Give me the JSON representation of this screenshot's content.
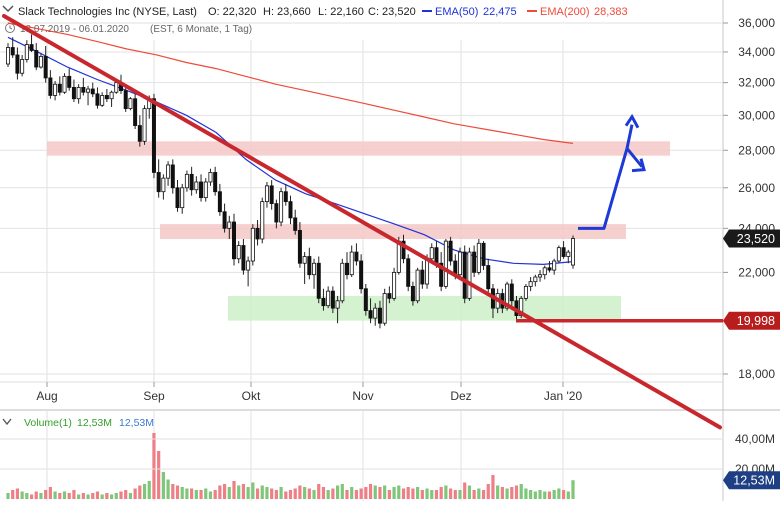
{
  "header": {
    "title": "Slack Technologies Inc (NYSE, Last)",
    "ohlc": [
      "O: 22,320",
      "H: 23,660",
      "L: 22,160",
      "C: 23,520"
    ],
    "ema50_label": "EMA(50)",
    "ema50_value": "22,475",
    "ema200_label": "EMA(200)",
    "ema200_value": "28,383",
    "range": "18.07.2019 - 06.01.2020",
    "settings": "(EST, 6 Monate, 1 Tag)",
    "clock_icon": "clock-icon"
  },
  "colors": {
    "up": "#33a02c",
    "down": "#e0181e",
    "ema50": "#2033d6",
    "ema200": "#ee4b3a",
    "trend": "#c8272e",
    "arrow": "#1c3ad6",
    "resistance_zone": "#f3c8c6",
    "support_zone": "#cdeec8",
    "grid": "#e2e2e2",
    "axis_text": "#333333",
    "last_badge": "#1a1a1a",
    "level_badge": "#b81d1e",
    "volume_badge": "#1e3f84"
  },
  "price_axis": {
    "ticks": [
      {
        "v": 36000,
        "label": "36,000"
      },
      {
        "v": 34000,
        "label": "34,000"
      },
      {
        "v": 32000,
        "label": "32,000"
      },
      {
        "v": 30000,
        "label": "30,000"
      },
      {
        "v": 28000,
        "label": "28,000"
      },
      {
        "v": 26000,
        "label": "26,000"
      },
      {
        "v": 24000,
        "label": "24,000"
      },
      {
        "v": 22000,
        "label": "22,000"
      },
      {
        "v": 18000,
        "label": "18,000"
      }
    ],
    "last_price": {
      "v": 23520,
      "label": "23,520"
    },
    "level_badge": {
      "v": 19998,
      "label": "19,998"
    }
  },
  "x_axis": {
    "labels": [
      "Aug",
      "Sep",
      "Okt",
      "Nov",
      "Dez",
      "Jan '20"
    ]
  },
  "volume_panel": {
    "title": "Volume(1)",
    "value1": "12,53M",
    "value2": "12,53M",
    "ticks": [
      {
        "v": 40,
        "label": "40,00M"
      },
      {
        "v": 20,
        "label": "20,00M"
      }
    ],
    "last_label": "12,53M"
  },
  "chart_data": {
    "type": "candlestick",
    "title": "Slack Technologies Inc (NYSE, Last)",
    "x_range": [
      "18.07.2019",
      "06.01.2020"
    ],
    "ylim": [
      17000,
      37000
    ],
    "scale": "log",
    "grid": true,
    "annotations": {
      "resistance_zone_high": [
        27700,
        28500
      ],
      "resistance_zone_low": [
        23500,
        24200
      ],
      "support_zone": [
        20000,
        21000
      ],
      "support_level": 19998,
      "trendline": {
        "from": [
          "18.07.2019",
          36000
        ],
        "to": [
          "06.01.2020",
          19998
        ]
      },
      "projection_arrow": {
        "from": 24000,
        "peak": 28100,
        "targets": [
          29800,
          27000
        ]
      }
    },
    "ema": [
      {
        "name": "EMA(50)",
        "last": 22475,
        "values": [
          35000,
          34000,
          33000,
          32200,
          31500,
          30800,
          30000,
          29000,
          27500,
          26400,
          25700,
          25200,
          24700,
          24200,
          23700,
          23000,
          22600,
          22400,
          22350,
          22475
        ]
      },
      {
        "name": "EMA(200)",
        "last": 28383,
        "values": [
          36000,
          35600,
          35200,
          34700,
          34200,
          33800,
          33300,
          32900,
          32400,
          31900,
          31500,
          31100,
          30700,
          30300,
          29900,
          29500,
          29200,
          28900,
          28600,
          28383
        ]
      }
    ],
    "candles": [
      [
        33200,
        34600,
        33000,
        34300,
        4
      ],
      [
        34300,
        35000,
        33600,
        33800,
        6
      ],
      [
        33800,
        34300,
        32200,
        32600,
        7
      ],
      [
        32600,
        33800,
        32400,
        33500,
        5
      ],
      [
        33500,
        34800,
        33300,
        34500,
        4
      ],
      [
        34500,
        35200,
        34000,
        34100,
        3
      ],
      [
        34100,
        34600,
        32800,
        33000,
        5
      ],
      [
        33000,
        33900,
        32900,
        33700,
        4
      ],
      [
        33700,
        34400,
        32000,
        32300,
        6
      ],
      [
        32300,
        32800,
        31000,
        31200,
        8
      ],
      [
        31200,
        32100,
        30900,
        31900,
        5
      ],
      [
        31900,
        32400,
        31200,
        31400,
        4
      ],
      [
        31400,
        32600,
        31300,
        32400,
        5
      ],
      [
        32400,
        32900,
        31500,
        31700,
        4
      ],
      [
        31700,
        32200,
        30800,
        31000,
        6
      ],
      [
        31000,
        31900,
        30700,
        31700,
        3
      ],
      [
        31700,
        32300,
        31200,
        31400,
        4
      ],
      [
        31400,
        31800,
        30600,
        31600,
        3
      ],
      [
        31600,
        32000,
        31100,
        31300,
        4
      ],
      [
        31300,
        31700,
        30400,
        30600,
        5
      ],
      [
        30600,
        31400,
        30500,
        31200,
        3
      ],
      [
        31200,
        31600,
        30800,
        31000,
        4
      ],
      [
        31000,
        31500,
        30500,
        31400,
        3
      ],
      [
        31400,
        32200,
        31300,
        32000,
        4
      ],
      [
        32000,
        32500,
        31300,
        31500,
        5
      ],
      [
        31500,
        31900,
        30200,
        30400,
        6
      ],
      [
        30400,
        31100,
        30300,
        31000,
        4
      ],
      [
        31000,
        31300,
        29200,
        29400,
        7
      ],
      [
        29400,
        30000,
        28200,
        28500,
        9
      ],
      [
        28500,
        30600,
        28300,
        30400,
        10
      ],
      [
        30400,
        31200,
        29800,
        31000,
        12
      ],
      [
        31000,
        31300,
        26500,
        26800,
        44
      ],
      [
        26800,
        27500,
        25500,
        25800,
        32
      ],
      [
        25800,
        26700,
        25400,
        26500,
        18
      ],
      [
        26500,
        27400,
        26100,
        27200,
        13
      ],
      [
        27200,
        27500,
        25700,
        26000,
        10
      ],
      [
        26000,
        26400,
        24800,
        25000,
        9
      ],
      [
        25000,
        26200,
        24700,
        26000,
        8
      ],
      [
        26000,
        26900,
        25800,
        26700,
        7
      ],
      [
        26700,
        27100,
        25600,
        25900,
        7
      ],
      [
        25900,
        26600,
        25700,
        26300,
        6
      ],
      [
        26300,
        26700,
        25300,
        25500,
        6
      ],
      [
        25500,
        26500,
        25300,
        26300,
        7
      ],
      [
        26300,
        27000,
        26100,
        26800,
        5
      ],
      [
        26800,
        27100,
        25600,
        25800,
        6
      ],
      [
        25800,
        26200,
        24600,
        24800,
        9
      ],
      [
        24800,
        25200,
        23800,
        24000,
        10
      ],
      [
        24000,
        24600,
        23500,
        24300,
        8
      ],
      [
        24300,
        24700,
        22300,
        22600,
        12
      ],
      [
        22600,
        23400,
        22400,
        23200,
        9
      ],
      [
        23200,
        23500,
        21900,
        22100,
        10
      ],
      [
        22100,
        22700,
        21400,
        22500,
        8
      ],
      [
        22500,
        24200,
        22300,
        24000,
        11
      ],
      [
        24000,
        24400,
        23200,
        23500,
        7
      ],
      [
        23500,
        25500,
        23300,
        25300,
        9
      ],
      [
        25300,
        26300,
        25000,
        26100,
        8
      ],
      [
        26100,
        26400,
        24900,
        25200,
        7
      ],
      [
        25200,
        25400,
        24000,
        24300,
        6
      ],
      [
        24300,
        26000,
        24100,
        25800,
        8
      ],
      [
        25800,
        26200,
        25100,
        25300,
        5
      ],
      [
        25300,
        25600,
        24200,
        24500,
        6
      ],
      [
        24500,
        24900,
        23700,
        23900,
        7
      ],
      [
        23900,
        24300,
        22200,
        22400,
        9
      ],
      [
        22400,
        22900,
        21500,
        22700,
        8
      ],
      [
        22700,
        23100,
        21700,
        21900,
        7
      ],
      [
        21900,
        22600,
        21300,
        22400,
        6
      ],
      [
        22400,
        22700,
        20700,
        20900,
        10
      ],
      [
        20900,
        21300,
        20400,
        20600,
        8
      ],
      [
        20600,
        21400,
        20500,
        21200,
        6
      ],
      [
        21200,
        21400,
        20300,
        20500,
        7
      ],
      [
        20500,
        21000,
        19900,
        20800,
        9
      ],
      [
        20800,
        22600,
        20700,
        22400,
        10
      ],
      [
        22400,
        22900,
        21700,
        21900,
        6
      ],
      [
        21900,
        23200,
        21800,
        22900,
        8
      ],
      [
        22900,
        23300,
        22300,
        22500,
        6
      ],
      [
        22500,
        22800,
        21100,
        21300,
        7
      ],
      [
        21300,
        21500,
        20200,
        20400,
        8
      ],
      [
        20400,
        20900,
        19900,
        20100,
        10
      ],
      [
        20100,
        20700,
        19800,
        20500,
        9
      ],
      [
        20500,
        20800,
        19700,
        19900,
        8
      ],
      [
        19900,
        21300,
        19800,
        21100,
        9
      ],
      [
        21100,
        21400,
        20700,
        20900,
        6
      ],
      [
        20900,
        22200,
        20800,
        22000,
        8
      ],
      [
        22000,
        23600,
        21900,
        23400,
        9
      ],
      [
        23400,
        23700,
        22400,
        22600,
        7
      ],
      [
        22600,
        22800,
        21200,
        21400,
        8
      ],
      [
        21400,
        21600,
        20600,
        20800,
        7
      ],
      [
        20800,
        22200,
        20700,
        22100,
        8
      ],
      [
        22100,
        22500,
        21300,
        21500,
        6
      ],
      [
        21500,
        22800,
        21300,
        22600,
        7
      ],
      [
        22600,
        23300,
        22400,
        23100,
        6
      ],
      [
        23100,
        23400,
        22200,
        22400,
        6
      ],
      [
        22400,
        22900,
        21200,
        21400,
        8
      ],
      [
        21400,
        23500,
        21300,
        23400,
        9
      ],
      [
        23400,
        23600,
        22300,
        22500,
        7
      ],
      [
        22500,
        22800,
        21700,
        21900,
        6
      ],
      [
        21900,
        23100,
        21800,
        22900,
        6
      ],
      [
        22900,
        23200,
        20700,
        20900,
        11
      ],
      [
        20900,
        23100,
        20800,
        22900,
        9
      ],
      [
        22900,
        23200,
        21800,
        22000,
        6
      ],
      [
        22000,
        23500,
        21900,
        23300,
        7
      ],
      [
        23300,
        23400,
        22100,
        22300,
        6
      ],
      [
        22300,
        22600,
        21100,
        21300,
        10
      ],
      [
        21300,
        21500,
        20100,
        20500,
        16
      ],
      [
        20500,
        21300,
        20300,
        21100,
        9
      ],
      [
        21100,
        21300,
        20300,
        20500,
        8
      ],
      [
        20500,
        21600,
        20400,
        21500,
        7
      ],
      [
        21500,
        21700,
        20600,
        20800,
        8
      ],
      [
        20800,
        21000,
        20000,
        20200,
        9
      ],
      [
        20200,
        21000,
        20100,
        20900,
        10
      ],
      [
        20900,
        21500,
        20800,
        21400,
        7
      ],
      [
        21400,
        21800,
        21200,
        21600,
        6
      ],
      [
        21600,
        21900,
        21400,
        21800,
        5
      ],
      [
        21800,
        22100,
        21600,
        21900,
        6
      ],
      [
        21900,
        22300,
        21700,
        22200,
        5
      ],
      [
        22200,
        22500,
        22000,
        22100,
        5
      ],
      [
        22100,
        22600,
        21900,
        22500,
        6
      ],
      [
        22500,
        23200,
        22400,
        23100,
        7
      ],
      [
        23100,
        23400,
        22600,
        22700,
        6
      ],
      [
        22700,
        23000,
        22400,
        22900,
        5
      ],
      [
        22320,
        23660,
        22160,
        23520,
        12.53
      ]
    ]
  }
}
